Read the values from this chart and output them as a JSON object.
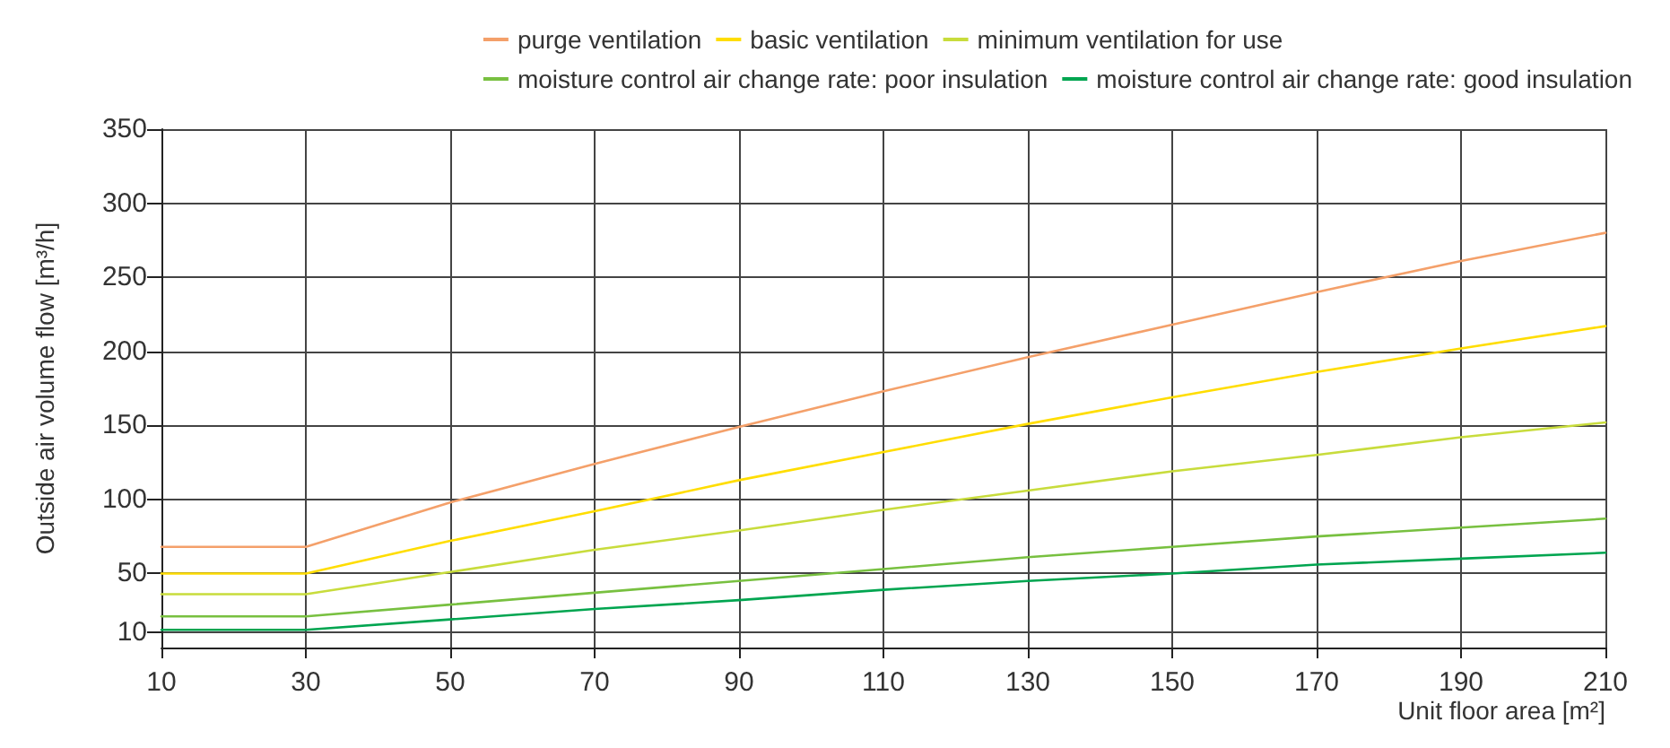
{
  "chart_data": {
    "type": "line",
    "xlabel": "Unit floor area [m²]",
    "ylabel": "Outside air volume flow [m³/h]",
    "x": [
      10,
      30,
      50,
      70,
      90,
      110,
      130,
      150,
      170,
      190,
      210
    ],
    "series": [
      {
        "name": "purge ventilation",
        "color": "#f4a06a",
        "values": [
          68,
          68,
          98,
          124,
          149,
          173,
          196,
          218,
          240,
          261,
          280
        ]
      },
      {
        "name": "basic ventilation",
        "color": "#ffdd00",
        "values": [
          50,
          50,
          72,
          92,
          113,
          132,
          151,
          169,
          186,
          202,
          217
        ]
      },
      {
        "name": "minimum ventilation for use",
        "color": "#c8dc3c",
        "values": [
          36,
          36,
          51,
          66,
          79,
          93,
          106,
          119,
          130,
          142,
          152
        ]
      },
      {
        "name": "moisture control air change rate: poor insulation",
        "color": "#78c040",
        "values": [
          21,
          21,
          29,
          37,
          45,
          53,
          61,
          68,
          75,
          81,
          87
        ]
      },
      {
        "name": "moisture control air change rate: good insulation",
        "color": "#00a550",
        "values": [
          12,
          12,
          19,
          26,
          32,
          39,
          45,
          50,
          56,
          60,
          64
        ]
      }
    ],
    "xlim": [
      10,
      210
    ],
    "xticks": [
      10,
      30,
      50,
      70,
      90,
      110,
      130,
      150,
      170,
      190,
      210
    ],
    "ylim": [
      0,
      350
    ],
    "yticks": [
      10,
      50,
      100,
      150,
      200,
      250,
      300,
      350
    ],
    "grid": true,
    "legend": "top right",
    "marker": "none",
    "line_style": "solid"
  }
}
